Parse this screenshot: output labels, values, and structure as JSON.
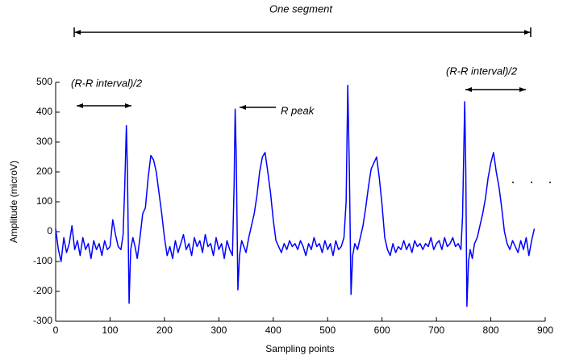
{
  "chart_data": {
    "type": "line",
    "color": "#0000ff",
    "xlabel": "Sampling points",
    "ylabel": "Amplitude (microV)",
    "annotations": [
      "One segment",
      "(R-R interval)/2",
      "R peak",
      "(R-R interval)/2"
    ],
    "xlim": [
      0,
      900
    ],
    "xticks": [
      0,
      100,
      200,
      300,
      400,
      500,
      600,
      700,
      800,
      900
    ],
    "ylim": [
      -300,
      500
    ],
    "yticks": [
      -300,
      -200,
      -100,
      0,
      100,
      200,
      300,
      400,
      500
    ],
    "x": [
      0,
      5,
      10,
      15,
      20,
      25,
      30,
      35,
      40,
      45,
      50,
      55,
      60,
      65,
      70,
      75,
      80,
      85,
      90,
      95,
      100,
      105,
      110,
      115,
      120,
      124,
      127,
      130,
      132,
      135,
      138,
      142,
      146,
      150,
      155,
      160,
      165,
      170,
      175,
      180,
      185,
      190,
      195,
      200,
      205,
      210,
      215,
      220,
      225,
      230,
      235,
      240,
      245,
      250,
      255,
      260,
      265,
      270,
      275,
      280,
      285,
      290,
      295,
      300,
      305,
      310,
      315,
      320,
      325,
      328,
      330,
      332,
      335,
      338,
      342,
      346,
      350,
      355,
      360,
      365,
      370,
      375,
      380,
      385,
      390,
      395,
      400,
      405,
      410,
      415,
      420,
      425,
      430,
      435,
      440,
      445,
      450,
      455,
      460,
      465,
      470,
      475,
      480,
      485,
      490,
      495,
      500,
      505,
      510,
      515,
      520,
      525,
      530,
      534,
      537,
      540,
      543,
      546,
      550,
      555,
      560,
      565,
      570,
      575,
      580,
      585,
      590,
      595,
      600,
      605,
      610,
      615,
      620,
      625,
      630,
      635,
      640,
      645,
      650,
      655,
      660,
      665,
      670,
      675,
      680,
      685,
      690,
      695,
      700,
      705,
      710,
      715,
      720,
      725,
      730,
      735,
      740,
      745,
      748,
      752,
      754,
      756,
      759,
      762,
      766,
      770,
      775,
      780,
      785,
      790,
      795,
      800,
      805,
      810,
      815,
      820,
      825,
      830,
      835,
      840,
      845,
      850,
      855,
      860,
      865,
      870,
      875,
      880
    ],
    "values": [
      10,
      -60,
      -100,
      -20,
      -70,
      -40,
      20,
      -60,
      -30,
      -80,
      -20,
      -60,
      -40,
      -90,
      -30,
      -60,
      -40,
      -80,
      -30,
      -60,
      -50,
      40,
      -10,
      -50,
      -60,
      -10,
      150,
      355,
      200,
      -240,
      -60,
      -20,
      -50,
      -90,
      -20,
      60,
      80,
      180,
      255,
      240,
      200,
      130,
      60,
      -20,
      -80,
      -50,
      -90,
      -30,
      -70,
      -40,
      -10,
      -60,
      -40,
      -80,
      -20,
      -50,
      -30,
      -70,
      -10,
      -50,
      -40,
      -80,
      -20,
      -60,
      -40,
      -90,
      -30,
      -60,
      -80,
      150,
      410,
      250,
      -195,
      -80,
      -30,
      -50,
      -70,
      -20,
      20,
      60,
      120,
      200,
      250,
      265,
      200,
      130,
      40,
      -30,
      -50,
      -70,
      -40,
      -60,
      -30,
      -50,
      -40,
      -60,
      -30,
      -50,
      -80,
      -40,
      -60,
      -20,
      -50,
      -40,
      -70,
      -30,
      -60,
      -40,
      -80,
      -30,
      -60,
      -50,
      -20,
      100,
      490,
      200,
      -210,
      -80,
      -40,
      -60,
      -20,
      20,
      80,
      150,
      210,
      230,
      250,
      180,
      90,
      -20,
      -60,
      -80,
      -40,
      -70,
      -50,
      -60,
      -30,
      -60,
      -40,
      -70,
      -30,
      -50,
      -40,
      -60,
      -40,
      -50,
      -20,
      -60,
      -40,
      -30,
      -60,
      -20,
      -50,
      -40,
      -20,
      -50,
      -40,
      -60,
      50,
      435,
      200,
      -250,
      -100,
      -60,
      -90,
      -40,
      -20,
      20,
      60,
      110,
      180,
      230,
      265,
      200,
      150,
      80,
      0,
      -40,
      -60,
      -30,
      -50,
      -70,
      -30,
      -60,
      -20,
      -80,
      -30,
      10
    ]
  }
}
